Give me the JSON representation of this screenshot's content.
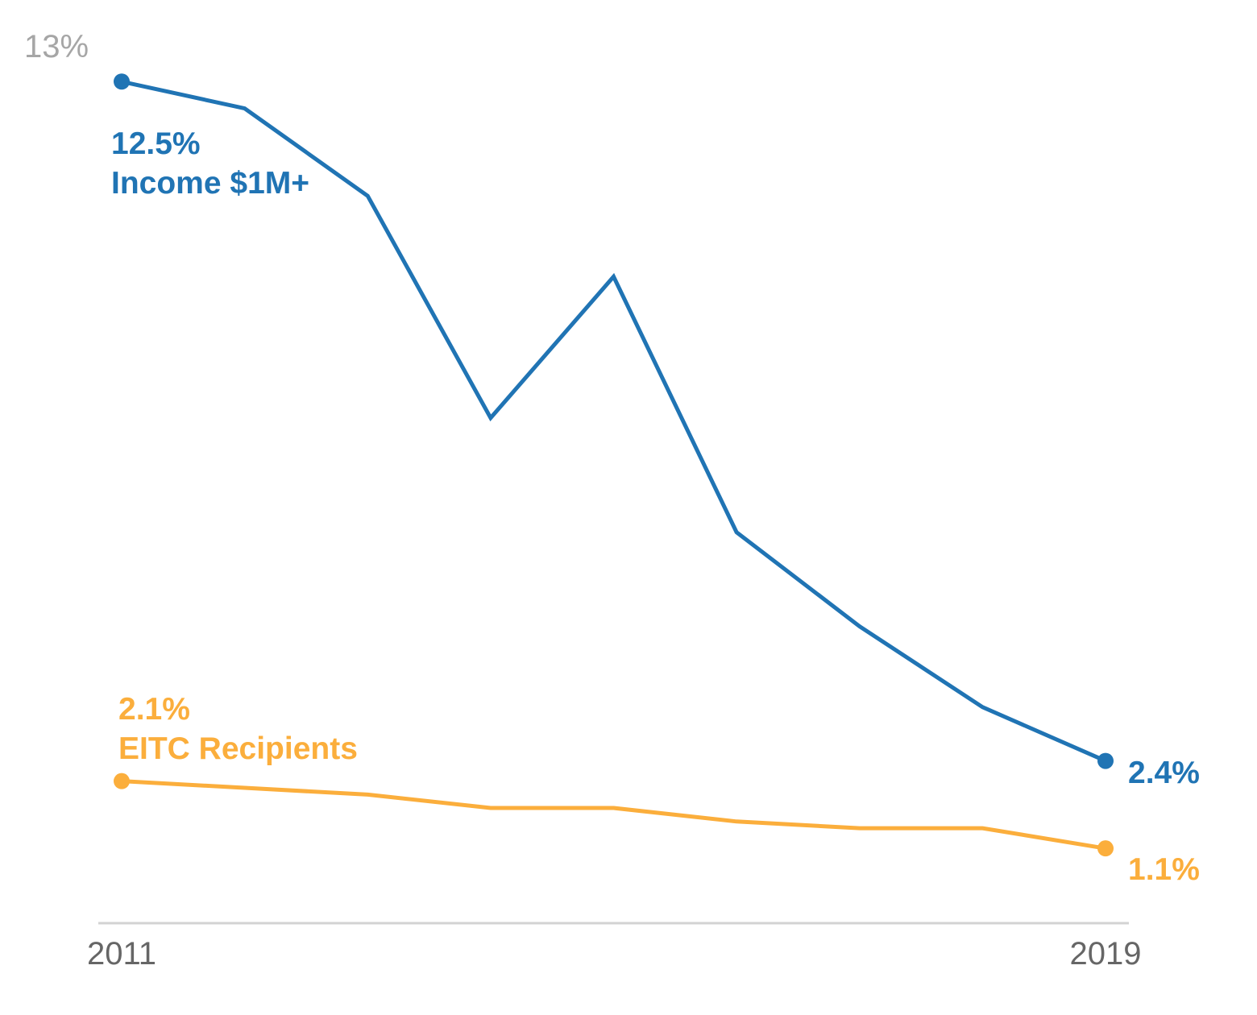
{
  "chart_data": {
    "type": "line",
    "title": "",
    "xlabel": "",
    "ylabel": "",
    "x": [
      2011,
      2012,
      2013,
      2014,
      2015,
      2016,
      2017,
      2018,
      2019
    ],
    "xtick_labels": [
      "2011",
      "2019"
    ],
    "ytick_labels": [
      "13%"
    ],
    "ylim": [
      0,
      13
    ],
    "grid": false,
    "legend": "none (direct labels)",
    "series": [
      {
        "name": "Income $1M+",
        "color": "#2074b4",
        "values": [
          12.5,
          12.1,
          10.8,
          7.5,
          9.6,
          5.8,
          4.4,
          3.2,
          2.4
        ],
        "start_label": "12.5%",
        "end_label": "2.4%"
      },
      {
        "name": "EITC Recipients",
        "color": "#fbae3c",
        "values": [
          2.1,
          2.0,
          1.9,
          1.7,
          1.7,
          1.5,
          1.4,
          1.4,
          1.1
        ],
        "start_label": "2.1%",
        "end_label": "1.1%"
      }
    ],
    "axis_color": "#d3d3d3"
  }
}
